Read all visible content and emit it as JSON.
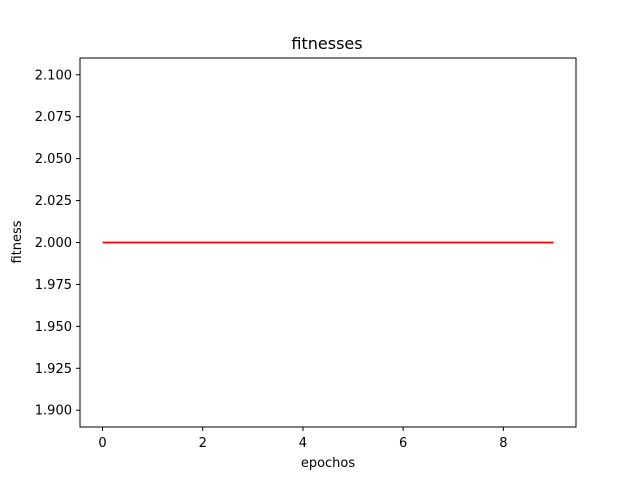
{
  "chart_data": {
    "type": "line",
    "title": "fitnesses",
    "xlabel": "epochos",
    "ylabel": "fitness",
    "x": [
      0,
      1,
      2,
      3,
      4,
      5,
      6,
      7,
      8,
      9
    ],
    "series": [
      {
        "values": [
          2.0,
          2.0,
          2.0,
          2.0,
          2.0,
          2.0,
          2.0,
          2.0,
          2.0,
          2.0
        ],
        "color": "#ff0000"
      }
    ],
    "xlim": [
      -0.45,
      9.45
    ],
    "ylim": [
      1.89,
      2.11
    ],
    "xticks": [
      0,
      2,
      4,
      6,
      8
    ],
    "xtick_labels": [
      "0",
      "2",
      "4",
      "6",
      "8"
    ],
    "yticks": [
      1.9,
      1.925,
      1.95,
      1.975,
      2.0,
      2.025,
      2.05,
      2.075,
      2.1
    ],
    "ytick_labels": [
      "1.900",
      "1.925",
      "1.950",
      "1.975",
      "2.000",
      "2.025",
      "2.050",
      "2.075",
      "2.100"
    ],
    "grid": false,
    "legend": false
  }
}
